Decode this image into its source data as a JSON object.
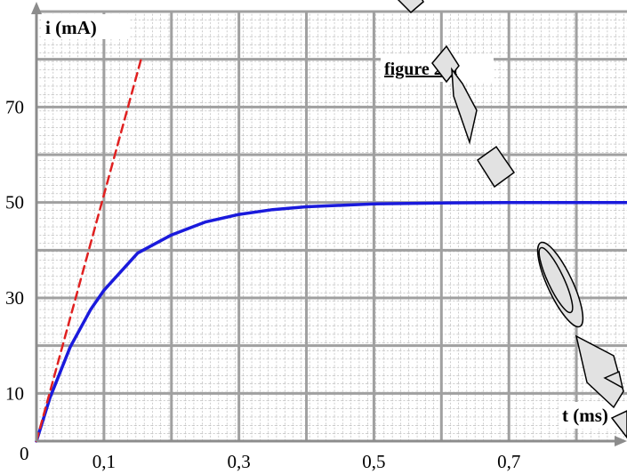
{
  "chart_data": {
    "type": "line",
    "title": "figure 2-a",
    "xlabel": "t (ms)",
    "ylabel": "i (mA)",
    "xlim": [
      0,
      0.875
    ],
    "ylim": [
      0,
      90
    ],
    "x_ticks": [
      {
        "value": 0.1,
        "label": "0,1"
      },
      {
        "value": 0.3,
        "label": "0,3"
      },
      {
        "value": 0.5,
        "label": "0,5"
      },
      {
        "value": 0.7,
        "label": "0,7"
      }
    ],
    "y_ticks": [
      {
        "value": 10,
        "label": "10"
      },
      {
        "value": 30,
        "label": "30"
      },
      {
        "value": 50,
        "label": "50"
      },
      {
        "value": 70,
        "label": "70"
      }
    ],
    "origin_label": "0",
    "grid": true,
    "series": [
      {
        "style": "solid",
        "color": "#1a1adc",
        "x": [
          0,
          0.02,
          0.05,
          0.08,
          0.1,
          0.15,
          0.2,
          0.25,
          0.3,
          0.35,
          0.4,
          0.5,
          0.6,
          0.7,
          0.8,
          0.875
        ],
        "y": [
          0,
          9.1,
          19.7,
          27.5,
          31.6,
          39.4,
          43.2,
          45.9,
          47.5,
          48.5,
          49.1,
          49.7,
          49.9,
          50.0,
          50.0,
          50.0
        ]
      },
      {
        "style": "dashed",
        "color": "#e02020",
        "x": [
          0,
          0.155
        ],
        "y": [
          0,
          80
        ]
      }
    ]
  }
}
